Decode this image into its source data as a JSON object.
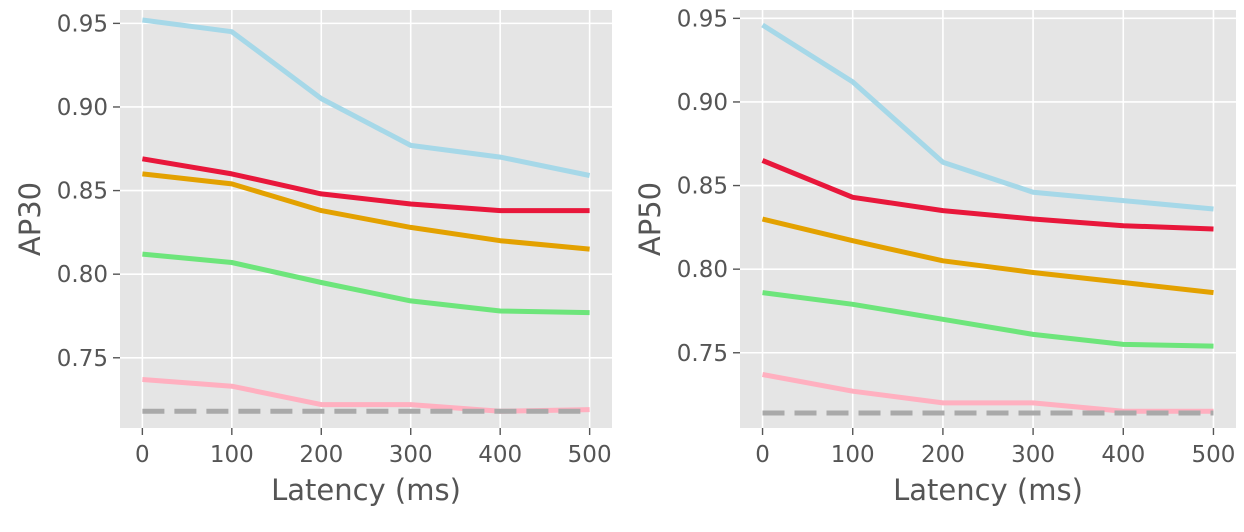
{
  "chart_data": [
    {
      "type": "line",
      "title": "",
      "xlabel": "Latency (ms)",
      "ylabel": "AP30",
      "x": [
        0,
        100,
        200,
        300,
        400,
        500
      ],
      "xlim": [
        -25,
        525
      ],
      "ylim": [
        0.708,
        0.958
      ],
      "xticks": [
        0,
        100,
        200,
        300,
        400,
        500
      ],
      "yticks": [
        0.75,
        0.8,
        0.85,
        0.9,
        0.95
      ],
      "ytick_labels": [
        "0.75",
        "0.80",
        "0.85",
        "0.90",
        "0.95"
      ],
      "grid": true,
      "series": [
        {
          "name": "light-blue",
          "color": "#a6d8e8",
          "style": "solid",
          "values": [
            0.952,
            0.945,
            0.905,
            0.877,
            0.87,
            0.859
          ]
        },
        {
          "name": "red",
          "color": "#e8173b",
          "style": "solid",
          "values": [
            0.869,
            0.86,
            0.848,
            0.842,
            0.838,
            0.838
          ]
        },
        {
          "name": "orange",
          "color": "#e3a100",
          "style": "solid",
          "values": [
            0.86,
            0.854,
            0.838,
            0.828,
            0.82,
            0.815
          ]
        },
        {
          "name": "green",
          "color": "#6de57b",
          "style": "solid",
          "values": [
            0.812,
            0.807,
            0.795,
            0.784,
            0.778,
            0.777
          ]
        },
        {
          "name": "pink",
          "color": "#ffb0c0",
          "style": "solid",
          "values": [
            0.737,
            0.733,
            0.722,
            0.722,
            0.718,
            0.719
          ]
        },
        {
          "name": "baseline",
          "color": "#a9a9a9",
          "style": "dashed",
          "values": [
            0.718,
            0.718,
            0.718,
            0.718,
            0.718,
            0.718
          ]
        }
      ]
    },
    {
      "type": "line",
      "title": "",
      "xlabel": "Latency (ms)",
      "ylabel": "AP50",
      "x": [
        0,
        100,
        200,
        300,
        400,
        500
      ],
      "xlim": [
        -25,
        525
      ],
      "ylim": [
        0.705,
        0.955
      ],
      "xticks": [
        0,
        100,
        200,
        300,
        400,
        500
      ],
      "yticks": [
        0.75,
        0.8,
        0.85,
        0.9,
        0.95
      ],
      "ytick_labels": [
        "0.75",
        "0.80",
        "0.85",
        "0.90",
        "0.95"
      ],
      "grid": true,
      "series": [
        {
          "name": "light-blue",
          "color": "#a6d8e8",
          "style": "solid",
          "values": [
            0.946,
            0.912,
            0.864,
            0.846,
            0.841,
            0.836
          ]
        },
        {
          "name": "red",
          "color": "#e8173b",
          "style": "solid",
          "values": [
            0.865,
            0.843,
            0.835,
            0.83,
            0.826,
            0.824
          ]
        },
        {
          "name": "orange",
          "color": "#e3a100",
          "style": "solid",
          "values": [
            0.83,
            0.817,
            0.805,
            0.798,
            0.792,
            0.786
          ]
        },
        {
          "name": "green",
          "color": "#6de57b",
          "style": "solid",
          "values": [
            0.786,
            0.779,
            0.77,
            0.761,
            0.755,
            0.754
          ]
        },
        {
          "name": "pink",
          "color": "#ffb0c0",
          "style": "solid",
          "values": [
            0.737,
            0.727,
            0.72,
            0.72,
            0.715,
            0.715
          ]
        },
        {
          "name": "baseline",
          "color": "#a9a9a9",
          "style": "dashed",
          "values": [
            0.714,
            0.714,
            0.714,
            0.714,
            0.714,
            0.714
          ]
        }
      ]
    }
  ]
}
